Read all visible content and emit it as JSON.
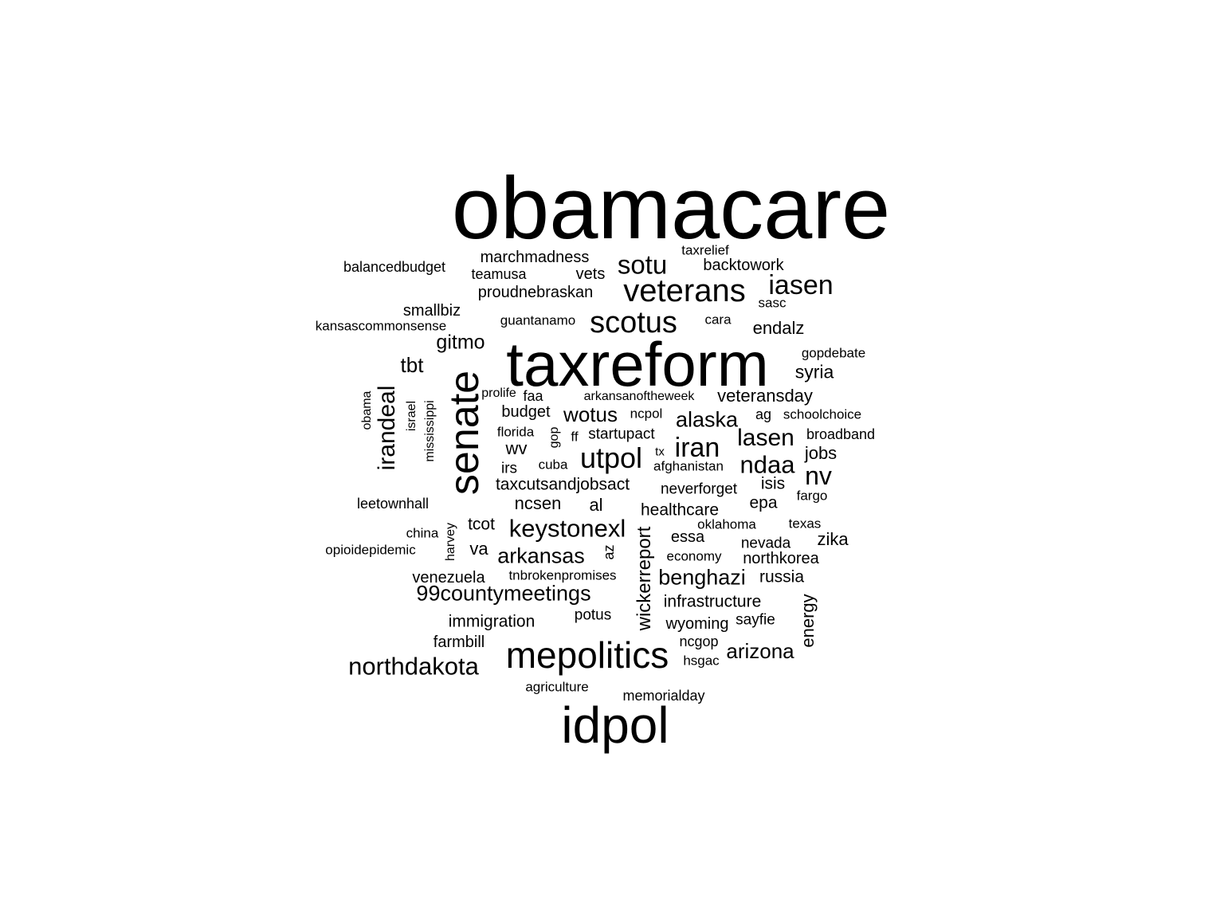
{
  "words": [
    {
      "text": "obamacare",
      "v": false
    },
    {
      "text": "taxreform",
      "v": false
    },
    {
      "text": "idpol",
      "v": false
    },
    {
      "text": "senate",
      "v": true
    },
    {
      "text": "mepolitics",
      "v": false
    },
    {
      "text": "veterans",
      "v": false
    },
    {
      "text": "scotus",
      "v": false
    },
    {
      "text": "sotu",
      "v": false
    },
    {
      "text": "iasen",
      "v": false
    },
    {
      "text": "utpol",
      "v": false
    },
    {
      "text": "iran",
      "v": false
    },
    {
      "text": "northdakota",
      "v": false
    },
    {
      "text": "keystonexl",
      "v": false
    },
    {
      "text": "ndaa",
      "v": false
    },
    {
      "text": "lasen",
      "v": false
    },
    {
      "text": "nv",
      "v": false
    },
    {
      "text": "irandeal",
      "v": true
    },
    {
      "text": "99countymeetings",
      "v": false
    },
    {
      "text": "arkansas",
      "v": false
    },
    {
      "text": "wotus",
      "v": false
    },
    {
      "text": "alaska",
      "v": false
    },
    {
      "text": "benghazi",
      "v": false
    },
    {
      "text": "arizona",
      "v": false
    },
    {
      "text": "wickerreport",
      "v": true
    },
    {
      "text": "gitmo",
      "v": false
    },
    {
      "text": "tbt",
      "v": false
    },
    {
      "text": "syria",
      "v": false
    },
    {
      "text": "endalz",
      "v": false
    },
    {
      "text": "jobs",
      "v": false
    },
    {
      "text": "veteransday",
      "v": false
    },
    {
      "text": "marchmadness",
      "v": false
    },
    {
      "text": "backtowork",
      "v": false
    },
    {
      "text": "proudnebraskan",
      "v": false
    },
    {
      "text": "smallbiz",
      "v": false
    },
    {
      "text": "budget",
      "v": false
    },
    {
      "text": "taxcutsandjobsact",
      "v": false
    },
    {
      "text": "ncsen",
      "v": false
    },
    {
      "text": "healthcare",
      "v": false
    },
    {
      "text": "immigration",
      "v": false
    },
    {
      "text": "infrastructure",
      "v": false
    },
    {
      "text": "energy",
      "v": true
    },
    {
      "text": "northkorea",
      "v": false
    },
    {
      "text": "russia",
      "v": false
    },
    {
      "text": "zika",
      "v": false
    },
    {
      "text": "nevada",
      "v": false
    },
    {
      "text": "essa",
      "v": false
    },
    {
      "text": "tcot",
      "v": false
    },
    {
      "text": "va",
      "v": false
    },
    {
      "text": "wv",
      "v": false
    },
    {
      "text": "al",
      "v": false
    },
    {
      "text": "epa",
      "v": false
    },
    {
      "text": "isis",
      "v": false
    },
    {
      "text": "startupact",
      "v": false
    },
    {
      "text": "neverforget",
      "v": false
    },
    {
      "text": "venezuela",
      "v": false
    },
    {
      "text": "farmbill",
      "v": false
    },
    {
      "text": "wyoming",
      "v": false
    },
    {
      "text": "sayfie",
      "v": false
    },
    {
      "text": "potus",
      "v": false
    },
    {
      "text": "vets",
      "v": false
    },
    {
      "text": "teamusa",
      "v": false
    },
    {
      "text": "balancedbudget",
      "v": false
    },
    {
      "text": "kansascommonsense",
      "v": false
    },
    {
      "text": "guantanamo",
      "v": false
    },
    {
      "text": "cara",
      "v": false
    },
    {
      "text": "sasc",
      "v": false
    },
    {
      "text": "taxrelief",
      "v": false
    },
    {
      "text": "gopdebate",
      "v": false
    },
    {
      "text": "prolife",
      "v": false
    },
    {
      "text": "faa",
      "v": false
    },
    {
      "text": "arkansanoftheweek",
      "v": false
    },
    {
      "text": "ncpol",
      "v": false
    },
    {
      "text": "ag",
      "v": false
    },
    {
      "text": "schoolchoice",
      "v": false
    },
    {
      "text": "broadband",
      "v": false
    },
    {
      "text": "florida",
      "v": false
    },
    {
      "text": "ff",
      "v": false
    },
    {
      "text": "gop",
      "v": true
    },
    {
      "text": "irs",
      "v": false
    },
    {
      "text": "cuba",
      "v": false
    },
    {
      "text": "tx",
      "v": false
    },
    {
      "text": "afghanistan",
      "v": false
    },
    {
      "text": "fargo",
      "v": false
    },
    {
      "text": "leetownhall",
      "v": false
    },
    {
      "text": "oklahoma",
      "v": false
    },
    {
      "text": "texas",
      "v": false
    },
    {
      "text": "china",
      "v": false
    },
    {
      "text": "harvey",
      "v": true
    },
    {
      "text": "az",
      "v": true
    },
    {
      "text": "opioidepidemic",
      "v": false
    },
    {
      "text": "economy",
      "v": false
    },
    {
      "text": "tnbrokenpromises",
      "v": false
    },
    {
      "text": "ncgop",
      "v": false
    },
    {
      "text": "hsgac",
      "v": false
    },
    {
      "text": "agriculture",
      "v": false
    },
    {
      "text": "memorialday",
      "v": false
    },
    {
      "text": "obama",
      "v": true
    },
    {
      "text": "israel",
      "v": true
    },
    {
      "text": "mississippi",
      "v": true
    }
  ]
}
